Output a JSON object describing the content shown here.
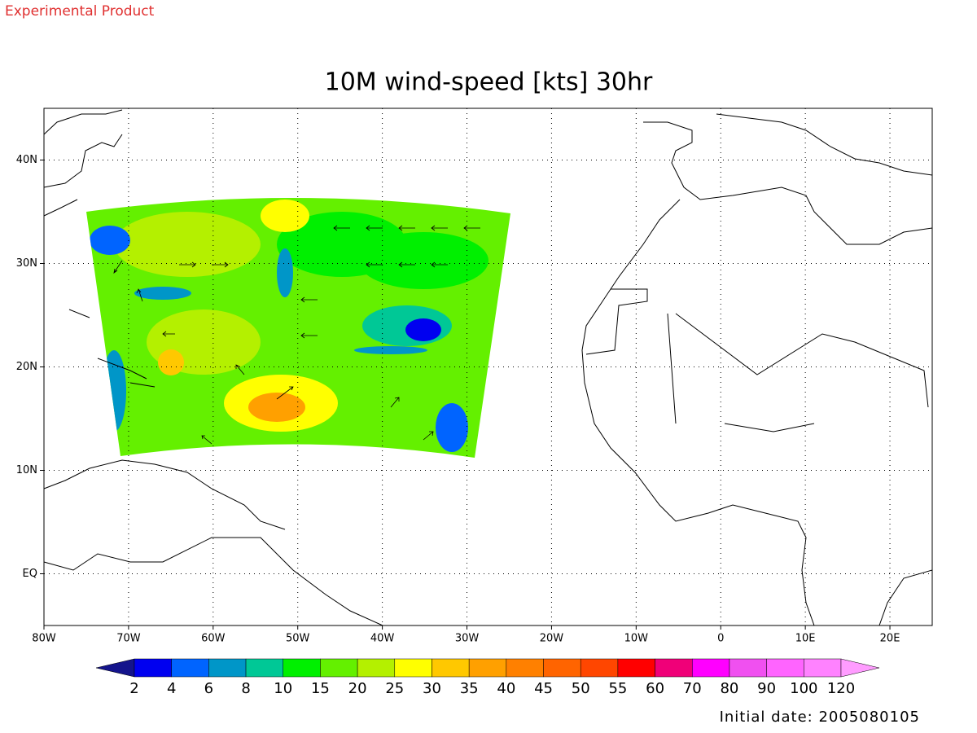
{
  "header": {
    "label": "Experimental Product"
  },
  "title": "10M wind-speed [kts] 30hr",
  "map": {
    "lon_ticks": [
      {
        "value": -80,
        "label": "80W"
      },
      {
        "value": -70,
        "label": "70W"
      },
      {
        "value": -60,
        "label": "60W"
      },
      {
        "value": -50,
        "label": "50W"
      },
      {
        "value": -40,
        "label": "40W"
      },
      {
        "value": -30,
        "label": "30W"
      },
      {
        "value": -20,
        "label": "20W"
      },
      {
        "value": -10,
        "label": "10W"
      },
      {
        "value": 0,
        "label": "0"
      },
      {
        "value": 10,
        "label": "10E"
      },
      {
        "value": 20,
        "label": "20E"
      }
    ],
    "lat_ticks": [
      {
        "value": 40,
        "label": "40N"
      },
      {
        "value": 30,
        "label": "30N"
      },
      {
        "value": 20,
        "label": "20N"
      },
      {
        "value": 10,
        "label": "10N"
      },
      {
        "value": 0,
        "label": "EQ"
      }
    ]
  },
  "colorbar": {
    "levels": [
      2,
      4,
      6,
      8,
      10,
      15,
      20,
      25,
      30,
      35,
      40,
      45,
      50,
      55,
      60,
      70,
      80,
      90,
      100,
      120
    ],
    "colors": [
      "#14148c",
      "#0000f0",
      "#0064ff",
      "#0096c8",
      "#00c896",
      "#00f000",
      "#64f000",
      "#b4f000",
      "#ffff00",
      "#ffc800",
      "#ffa000",
      "#ff8000",
      "#ff6400",
      "#ff4600",
      "#ff0000",
      "#f00078",
      "#ff00ff",
      "#f050f0",
      "#ff64ff",
      "#ff82ff",
      "#ff9cff"
    ]
  },
  "footer": "Initial date: 2005080105"
}
